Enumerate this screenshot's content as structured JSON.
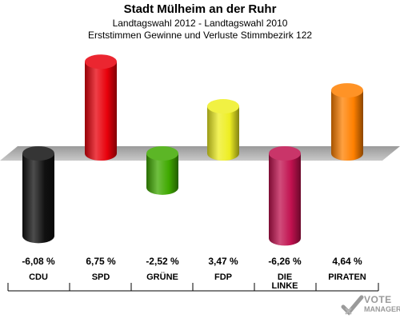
{
  "header": {
    "title": "Stadt Mülheim an der Ruhr",
    "subtitle": "Landtagswahl 2012 - Landtagswahl 2010",
    "subtitle2": "Erststimmen Gewinne und Verluste Stimmbezirk 122"
  },
  "logo": {
    "line1": "VOTE",
    "line2": "MANAGER"
  },
  "chart_data": {
    "type": "bar",
    "title": "Stadt Mülheim an der Ruhr",
    "subtitle": "Landtagswahl 2012 - Landtagswahl 2010 / Erststimmen Gewinne und Verluste Stimmbezirk 122",
    "categories": [
      "CDU",
      "SPD",
      "GRÜNE",
      "FDP",
      "DIE LINKE",
      "PIRATEN"
    ],
    "values": [
      -6.08,
      6.75,
      -2.52,
      3.47,
      -6.26,
      4.64
    ],
    "value_labels": [
      "-6,08 %",
      "6,75 %",
      "-2,52 %",
      "3,47 %",
      "-6,26 %",
      "4,64 %"
    ],
    "colors": [
      "#111111",
      "#e8000b",
      "#3fa900",
      "#eeee22",
      "#c0114f",
      "#ff8000"
    ],
    "ylim": [
      -7,
      7
    ],
    "grid": false,
    "legend": "none"
  }
}
